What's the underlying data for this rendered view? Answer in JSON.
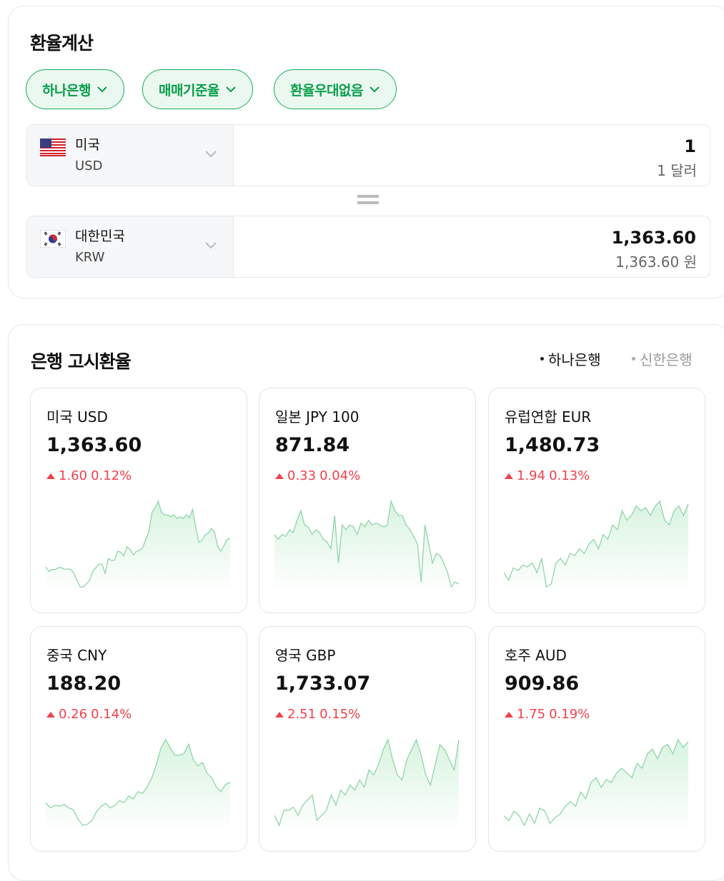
{
  "calculator": {
    "title": "환율계산",
    "chips": [
      {
        "label": "하나은행"
      },
      {
        "label": "매매기준율"
      },
      {
        "label": "환율우대없음"
      }
    ],
    "from": {
      "country": "미국",
      "code": "USD",
      "amount": "1",
      "amount_text": "1 달러",
      "flag": "us-flag"
    },
    "to": {
      "country": "대한민국",
      "code": "KRW",
      "amount": "1,363.60",
      "amount_text": "1,363.60 원",
      "flag": "kr-flag"
    }
  },
  "rates": {
    "title": "은행 고시환율",
    "banks": [
      {
        "label": "하나은행",
        "active": true
      },
      {
        "label": "신한은행",
        "active": false
      }
    ],
    "colors": {
      "up": "#f0424c",
      "line": "#8fd6a8",
      "fill": "#d8f3df",
      "accent": "#03c75a"
    },
    "cards": [
      {
        "name": "미국 USD",
        "price": "1,363.60",
        "change": "1.60",
        "percent": "0.12%",
        "direction": "up"
      },
      {
        "name": "일본 JPY 100",
        "price": "871.84",
        "change": "0.33",
        "percent": "0.04%",
        "direction": "up"
      },
      {
        "name": "유럽연합 EUR",
        "price": "1,480.73",
        "change": "1.94",
        "percent": "0.13%",
        "direction": "up"
      },
      {
        "name": "중국 CNY",
        "price": "188.20",
        "change": "0.26",
        "percent": "0.14%",
        "direction": "up"
      },
      {
        "name": "영국 GBP",
        "price": "1,733.07",
        "change": "2.51",
        "percent": "0.15%",
        "direction": "up"
      },
      {
        "name": "호주 AUD",
        "price": "909.86",
        "change": "1.75",
        "percent": "0.19%",
        "direction": "up"
      }
    ]
  },
  "chart_data": [
    {
      "type": "area",
      "series": [
        {
          "values": [
            25,
            20,
            22,
            22,
            24,
            24,
            22,
            23,
            22,
            18,
            10,
            3,
            3,
            6,
            10,
            20,
            24,
            28,
            28,
            18,
            34,
            32,
            32,
            42,
            41,
            37,
            47,
            44,
            38,
            42,
            43,
            46,
            55,
            64,
            85,
            90,
            97,
            85,
            82,
            82,
            80,
            82,
            78,
            80,
            78,
            82,
            79,
            88,
            68,
            52,
            54,
            60,
            62,
            67,
            63,
            48,
            42,
            48,
            55,
            56
          ]
        }
      ]
    },
    {
      "type": "area",
      "series": [
        {
          "values": [
            60,
            55,
            60,
            58,
            65,
            62,
            75,
            85,
            70,
            68,
            60,
            65,
            62,
            55,
            52,
            45,
            80,
            30,
            70,
            65,
            70,
            68,
            60,
            72,
            68,
            75,
            70,
            72,
            70,
            68,
            70,
            95,
            85,
            80,
            80,
            70,
            65,
            58,
            50,
            10,
            70,
            50,
            30,
            40,
            38,
            30,
            20,
            5,
            10,
            8
          ]
        }
      ]
    },
    {
      "type": "area",
      "series": [
        {
          "values": [
            20,
            12,
            25,
            22,
            28,
            26,
            30,
            20,
            35,
            5,
            8,
            30,
            35,
            28,
            40,
            38,
            45,
            40,
            50,
            55,
            45,
            60,
            55,
            70,
            65,
            85,
            75,
            80,
            90,
            85,
            88,
            80,
            90,
            95,
            75,
            70,
            85,
            90,
            80,
            92
          ]
        }
      ]
    },
    {
      "type": "area",
      "series": [
        {
          "values": [
            28,
            22,
            25,
            24,
            26,
            22,
            20,
            10,
            3,
            4,
            8,
            18,
            24,
            27,
            22,
            25,
            30,
            28,
            35,
            32,
            40,
            38,
            45,
            55,
            70,
            88,
            97,
            88,
            80,
            80,
            82,
            92,
            75,
            68,
            72,
            60,
            55,
            45,
            40,
            48,
            50
          ]
        }
      ]
    },
    {
      "type": "area",
      "series": [
        {
          "values": [
            20,
            10,
            25,
            25,
            28,
            20,
            30,
            35,
            40,
            15,
            20,
            25,
            40,
            30,
            45,
            40,
            50,
            45,
            55,
            48,
            65,
            60,
            70,
            85,
            95,
            75,
            60,
            55,
            75,
            85,
            95,
            80,
            60,
            50,
            70,
            90,
            85,
            75,
            65,
            95
          ]
        }
      ]
    },
    {
      "type": "area",
      "series": [
        {
          "values": [
            20,
            15,
            25,
            20,
            10,
            22,
            12,
            28,
            25,
            12,
            18,
            22,
            30,
            35,
            30,
            45,
            38,
            55,
            60,
            50,
            58,
            55,
            65,
            70,
            65,
            60,
            75,
            70,
            85,
            90,
            80,
            92,
            95,
            85,
            100,
            92,
            98
          ]
        }
      ]
    }
  ]
}
